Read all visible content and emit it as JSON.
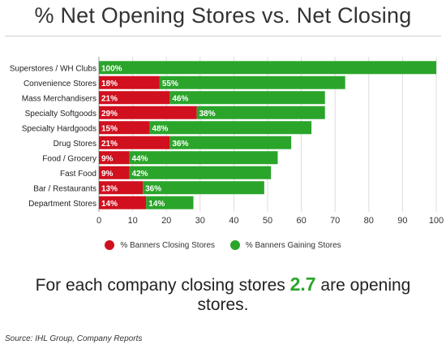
{
  "title": "% Net Opening Stores vs. Net Closing",
  "chart_data": {
    "type": "bar",
    "orientation": "horizontal",
    "stacked": true,
    "categories": [
      "Superstores / WH Clubs",
      "Convenience Stores",
      "Mass Merchandisers",
      "Specialty Softgoods",
      "Specialty Hardgoods",
      "Drug Stores",
      "Food / Grocery",
      "Fast Food",
      "Bar / Restaurants",
      "Department Stores"
    ],
    "series": [
      {
        "name": "% Banners Closing Stores",
        "color": "#d0101e",
        "values": [
          0,
          18,
          21,
          29,
          15,
          21,
          9,
          9,
          13,
          14
        ]
      },
      {
        "name": "% Banners Gaining Stores",
        "color": "#2aa52a",
        "values": [
          100,
          55,
          46,
          38,
          48,
          36,
          44,
          42,
          36,
          14
        ]
      }
    ],
    "xlim": [
      0,
      100
    ],
    "xticks": [
      0,
      10,
      20,
      30,
      40,
      50,
      60,
      70,
      80,
      90,
      100
    ],
    "grid": true,
    "legend": "bottom"
  },
  "legend": [
    {
      "label": "% Banners Closing Stores",
      "color": "#d0101e"
    },
    {
      "label": "% Banners Gaining Stores",
      "color": "#2aa52a"
    }
  ],
  "tagline": {
    "before": "For each company closing stores ",
    "highlight": "2.7",
    "after": " are opening stores."
  },
  "source": "Source: IHL Group, Company Reports"
}
